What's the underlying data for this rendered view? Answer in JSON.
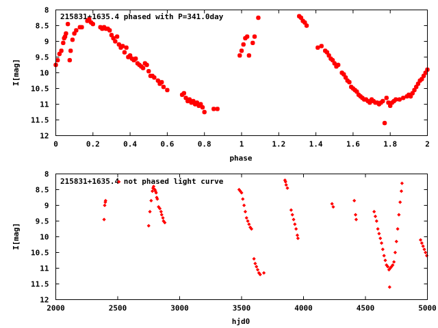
{
  "chart_data": [
    {
      "type": "scatter",
      "title": "215831+1635.4 phased with P=341.0day",
      "xlabel": "phase",
      "ylabel": "I[mag]",
      "xlim": [
        0,
        2
      ],
      "ylim": [
        8,
        12
      ],
      "y_inverted": true,
      "xticks": [
        0,
        0.2,
        0.4,
        0.6,
        0.8,
        1,
        1.2,
        1.4,
        1.6,
        1.8,
        2
      ],
      "xtick_labels": [
        "0",
        "0.2",
        "0.4",
        "0.6",
        "0.8",
        "1",
        "1.2",
        "1.4",
        "1.6",
        "1.8",
        "2"
      ],
      "yticks": [
        8,
        8.5,
        9,
        9.5,
        10,
        10.5,
        11,
        11.5,
        12
      ],
      "ytick_labels": [
        "8",
        "8.5",
        "9",
        "9.5",
        "10",
        "10.5",
        "11",
        "11.5",
        "12"
      ],
      "marker_color": "#ff0000",
      "marker": "star",
      "points": [
        [
          0.0,
          9.75
        ],
        [
          0.01,
          9.6
        ],
        [
          0.02,
          9.4
        ],
        [
          0.03,
          9.3
        ],
        [
          0.04,
          9.05
        ],
        [
          0.045,
          8.9
        ],
        [
          0.05,
          8.85
        ],
        [
          0.055,
          8.75
        ],
        [
          0.065,
          8.45
        ],
        [
          0.075,
          9.6
        ],
        [
          0.08,
          9.3
        ],
        [
          0.09,
          8.95
        ],
        [
          0.1,
          8.75
        ],
        [
          0.11,
          8.65
        ],
        [
          0.13,
          8.55
        ],
        [
          0.14,
          8.55
        ],
        [
          0.17,
          8.35
        ],
        [
          0.18,
          8.3
        ],
        [
          0.19,
          8.4
        ],
        [
          0.2,
          8.45
        ],
        [
          0.24,
          8.55
        ],
        [
          0.25,
          8.6
        ],
        [
          0.26,
          8.55
        ],
        [
          0.27,
          8.6
        ],
        [
          0.28,
          8.6
        ],
        [
          0.29,
          8.65
        ],
        [
          0.3,
          8.8
        ],
        [
          0.31,
          8.9
        ],
        [
          0.32,
          9.0
        ],
        [
          0.33,
          8.85
        ],
        [
          0.34,
          9.1
        ],
        [
          0.35,
          9.2
        ],
        [
          0.36,
          9.15
        ],
        [
          0.37,
          9.35
        ],
        [
          0.38,
          9.2
        ],
        [
          0.39,
          9.5
        ],
        [
          0.4,
          9.45
        ],
        [
          0.41,
          9.55
        ],
        [
          0.42,
          9.6
        ],
        [
          0.43,
          9.55
        ],
        [
          0.44,
          9.7
        ],
        [
          0.45,
          9.75
        ],
        [
          0.46,
          9.8
        ],
        [
          0.47,
          9.85
        ],
        [
          0.48,
          9.7
        ],
        [
          0.49,
          9.75
        ],
        [
          0.5,
          9.95
        ],
        [
          0.51,
          10.1
        ],
        [
          0.52,
          10.1
        ],
        [
          0.53,
          10.15
        ],
        [
          0.55,
          10.25
        ],
        [
          0.56,
          10.35
        ],
        [
          0.57,
          10.3
        ],
        [
          0.58,
          10.45
        ],
        [
          0.6,
          10.55
        ],
        [
          0.68,
          10.7
        ],
        [
          0.69,
          10.65
        ],
        [
          0.7,
          10.8
        ],
        [
          0.71,
          10.9
        ],
        [
          0.72,
          10.85
        ],
        [
          0.73,
          10.95
        ],
        [
          0.74,
          10.9
        ],
        [
          0.75,
          11.0
        ],
        [
          0.76,
          10.95
        ],
        [
          0.77,
          11.05
        ],
        [
          0.78,
          11.0
        ],
        [
          0.79,
          11.1
        ],
        [
          0.8,
          11.25
        ],
        [
          0.85,
          11.15
        ],
        [
          0.87,
          11.15
        ],
        [
          0.99,
          9.45
        ],
        [
          1.0,
          9.3
        ],
        [
          1.01,
          9.1
        ],
        [
          1.02,
          8.9
        ],
        [
          1.03,
          8.85
        ],
        [
          1.04,
          9.45
        ],
        [
          1.06,
          9.05
        ],
        [
          1.07,
          8.85
        ],
        [
          1.09,
          8.25
        ],
        [
          1.31,
          8.2
        ],
        [
          1.32,
          8.25
        ],
        [
          1.33,
          8.35
        ],
        [
          1.34,
          8.4
        ],
        [
          1.35,
          8.5
        ],
        [
          1.41,
          9.2
        ],
        [
          1.43,
          9.15
        ],
        [
          1.45,
          9.3
        ],
        [
          1.46,
          9.35
        ],
        [
          1.47,
          9.45
        ],
        [
          1.48,
          9.55
        ],
        [
          1.49,
          9.6
        ],
        [
          1.5,
          9.7
        ],
        [
          1.51,
          9.8
        ],
        [
          1.52,
          9.75
        ],
        [
          1.54,
          10.0
        ],
        [
          1.55,
          10.05
        ],
        [
          1.56,
          10.15
        ],
        [
          1.57,
          10.25
        ],
        [
          1.58,
          10.3
        ],
        [
          1.59,
          10.45
        ],
        [
          1.6,
          10.5
        ],
        [
          1.61,
          10.55
        ],
        [
          1.62,
          10.6
        ],
        [
          1.63,
          10.7
        ],
        [
          1.64,
          10.75
        ],
        [
          1.65,
          10.8
        ],
        [
          1.66,
          10.85
        ],
        [
          1.67,
          10.85
        ],
        [
          1.68,
          10.9
        ],
        [
          1.69,
          10.95
        ],
        [
          1.7,
          10.85
        ],
        [
          1.71,
          10.9
        ],
        [
          1.72,
          10.95
        ],
        [
          1.73,
          10.95
        ],
        [
          1.74,
          11.0
        ],
        [
          1.75,
          10.95
        ],
        [
          1.76,
          10.9
        ],
        [
          1.77,
          11.6
        ],
        [
          1.78,
          10.8
        ],
        [
          1.79,
          10.95
        ],
        [
          1.8,
          11.05
        ],
        [
          1.81,
          10.95
        ],
        [
          1.82,
          10.9
        ],
        [
          1.83,
          10.85
        ],
        [
          1.85,
          10.85
        ],
        [
          1.87,
          10.8
        ],
        [
          1.89,
          10.75
        ],
        [
          1.9,
          10.7
        ],
        [
          1.91,
          10.75
        ],
        [
          1.92,
          10.65
        ],
        [
          1.93,
          10.55
        ],
        [
          1.94,
          10.45
        ],
        [
          1.95,
          10.35
        ],
        [
          1.96,
          10.25
        ],
        [
          1.97,
          10.2
        ],
        [
          1.98,
          10.1
        ],
        [
          1.99,
          10.0
        ],
        [
          2.0,
          9.9
        ]
      ]
    },
    {
      "type": "scatter",
      "title": "215831+1635.4 not phased light curve",
      "xlabel": "hjd0",
      "ylabel": "I[mag]",
      "xlim": [
        2000,
        5000
      ],
      "ylim": [
        8,
        12
      ],
      "y_inverted": true,
      "xticks": [
        2000,
        2500,
        3000,
        3500,
        4000,
        4500,
        5000
      ],
      "xtick_labels": [
        "2000",
        "2500",
        "3000",
        "3500",
        "4000",
        "4500",
        "5000"
      ],
      "yticks": [
        8,
        8.5,
        9,
        9.5,
        10,
        10.5,
        11,
        11.5,
        12
      ],
      "ytick_labels": [
        "8",
        "8.5",
        "9",
        "9.5",
        "10",
        "10.5",
        "11",
        "11.5",
        "12"
      ],
      "marker_color": "#ff0000",
      "marker": "diamond",
      "points": [
        [
          2390,
          9.45
        ],
        [
          2395,
          9.0
        ],
        [
          2400,
          8.9
        ],
        [
          2402,
          8.85
        ],
        [
          2510,
          8.25
        ],
        [
          2750,
          9.65
        ],
        [
          2760,
          9.2
        ],
        [
          2770,
          8.85
        ],
        [
          2780,
          8.55
        ],
        [
          2785,
          8.45
        ],
        [
          2790,
          8.4
        ],
        [
          2800,
          8.5
        ],
        [
          2805,
          8.55
        ],
        [
          2810,
          8.6
        ],
        [
          2815,
          8.75
        ],
        [
          2820,
          8.8
        ],
        [
          2830,
          9.05
        ],
        [
          2840,
          9.1
        ],
        [
          2850,
          9.2
        ],
        [
          2855,
          9.3
        ],
        [
          2865,
          9.4
        ],
        [
          2870,
          9.5
        ],
        [
          2880,
          9.55
        ],
        [
          3480,
          8.5
        ],
        [
          3490,
          8.55
        ],
        [
          3500,
          8.6
        ],
        [
          3510,
          8.8
        ],
        [
          3520,
          9.0
        ],
        [
          3530,
          9.2
        ],
        [
          3540,
          9.4
        ],
        [
          3550,
          9.5
        ],
        [
          3560,
          9.6
        ],
        [
          3570,
          9.7
        ],
        [
          3580,
          9.75
        ],
        [
          3600,
          10.7
        ],
        [
          3610,
          10.85
        ],
        [
          3620,
          10.95
        ],
        [
          3630,
          11.05
        ],
        [
          3640,
          11.15
        ],
        [
          3650,
          11.2
        ],
        [
          3680,
          11.15
        ],
        [
          3850,
          8.2
        ],
        [
          3855,
          8.25
        ],
        [
          3860,
          8.35
        ],
        [
          3870,
          8.45
        ],
        [
          3900,
          9.15
        ],
        [
          3910,
          9.3
        ],
        [
          3920,
          9.45
        ],
        [
          3930,
          9.6
        ],
        [
          3940,
          9.75
        ],
        [
          3950,
          9.95
        ],
        [
          3955,
          10.05
        ],
        [
          4230,
          8.95
        ],
        [
          4240,
          9.05
        ],
        [
          4410,
          8.85
        ],
        [
          4420,
          9.3
        ],
        [
          4425,
          9.45
        ],
        [
          4570,
          9.2
        ],
        [
          4580,
          9.35
        ],
        [
          4590,
          9.5
        ],
        [
          4600,
          9.75
        ],
        [
          4610,
          9.9
        ],
        [
          4620,
          10.05
        ],
        [
          4630,
          10.2
        ],
        [
          4640,
          10.4
        ],
        [
          4650,
          10.6
        ],
        [
          4660,
          10.75
        ],
        [
          4670,
          10.9
        ],
        [
          4680,
          10.95
        ],
        [
          4690,
          11.05
        ],
        [
          4695,
          11.6
        ],
        [
          4700,
          11.0
        ],
        [
          4710,
          10.95
        ],
        [
          4720,
          10.9
        ],
        [
          4730,
          10.8
        ],
        [
          4740,
          10.5
        ],
        [
          4750,
          10.15
        ],
        [
          4760,
          9.75
        ],
        [
          4770,
          9.3
        ],
        [
          4780,
          8.9
        ],
        [
          4790,
          8.55
        ],
        [
          4795,
          8.3
        ],
        [
          4945,
          10.1
        ],
        [
          4955,
          10.2
        ],
        [
          4965,
          10.3
        ],
        [
          4975,
          10.4
        ],
        [
          4985,
          10.5
        ],
        [
          4995,
          10.6
        ]
      ]
    }
  ]
}
